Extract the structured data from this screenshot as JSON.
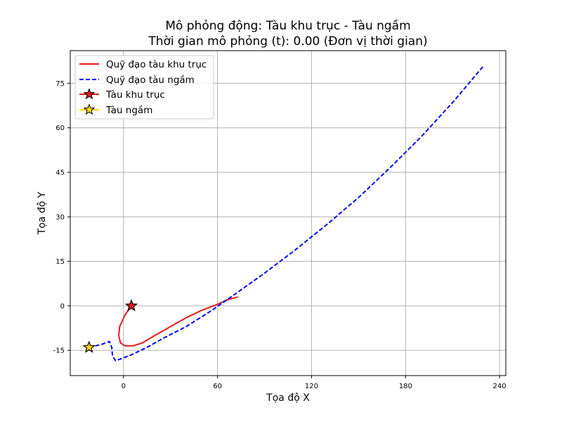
{
  "chart_data": {
    "type": "line",
    "title": "Mô phỏng động: Tàu khu trục - Tàu ngầm",
    "subtitle": "Thời gian mô phỏng (t): 0.00 (Đơn vị thời gian)",
    "xlabel": "Tọa độ X",
    "ylabel": "Tọa độ Y",
    "xlim": [
      -34,
      244
    ],
    "ylim": [
      -23.5,
      86
    ],
    "xticks": [
      0,
      60,
      120,
      180,
      240
    ],
    "yticks": [
      -15,
      0,
      15,
      30,
      45,
      60,
      75
    ],
    "grid": true,
    "legend_position": "top-left",
    "series": [
      {
        "name": "Quỹ đạo tàu khu trục",
        "style": "solid",
        "color": "#e41a1c",
        "x": [
          5,
          1,
          -2.5,
          -3,
          -2,
          1,
          6,
          12,
          20,
          30,
          40,
          50,
          60,
          66,
          73
        ],
        "y": [
          0,
          -3,
          -7,
          -10,
          -12.5,
          -13.5,
          -13.5,
          -12.5,
          -10,
          -7,
          -4,
          -1.5,
          0.5,
          2,
          3
        ]
      },
      {
        "name": "Quỹ đạo tàu ngầm",
        "style": "dashed",
        "color": "#0000ee",
        "x": [
          -22,
          -14,
          -9,
          -7.5,
          -7,
          -5,
          5,
          15,
          25,
          40,
          55,
          70,
          90,
          110,
          130,
          150,
          170,
          190,
          210,
          230
        ],
        "y": [
          -14,
          -13,
          -12,
          -14,
          -17,
          -18.5,
          -16.5,
          -14,
          -11,
          -7,
          -2,
          3.5,
          11,
          19,
          27.5,
          36.5,
          46.5,
          57,
          68.5,
          81
        ]
      }
    ],
    "markers": [
      {
        "name": "Tàu khu trục",
        "x": 5,
        "y": 0,
        "symbol": "star",
        "color": "#e41a1c"
      },
      {
        "name": "Tàu ngầm",
        "x": -22,
        "y": -14,
        "symbol": "star",
        "color": "#ffd700"
      }
    ]
  }
}
